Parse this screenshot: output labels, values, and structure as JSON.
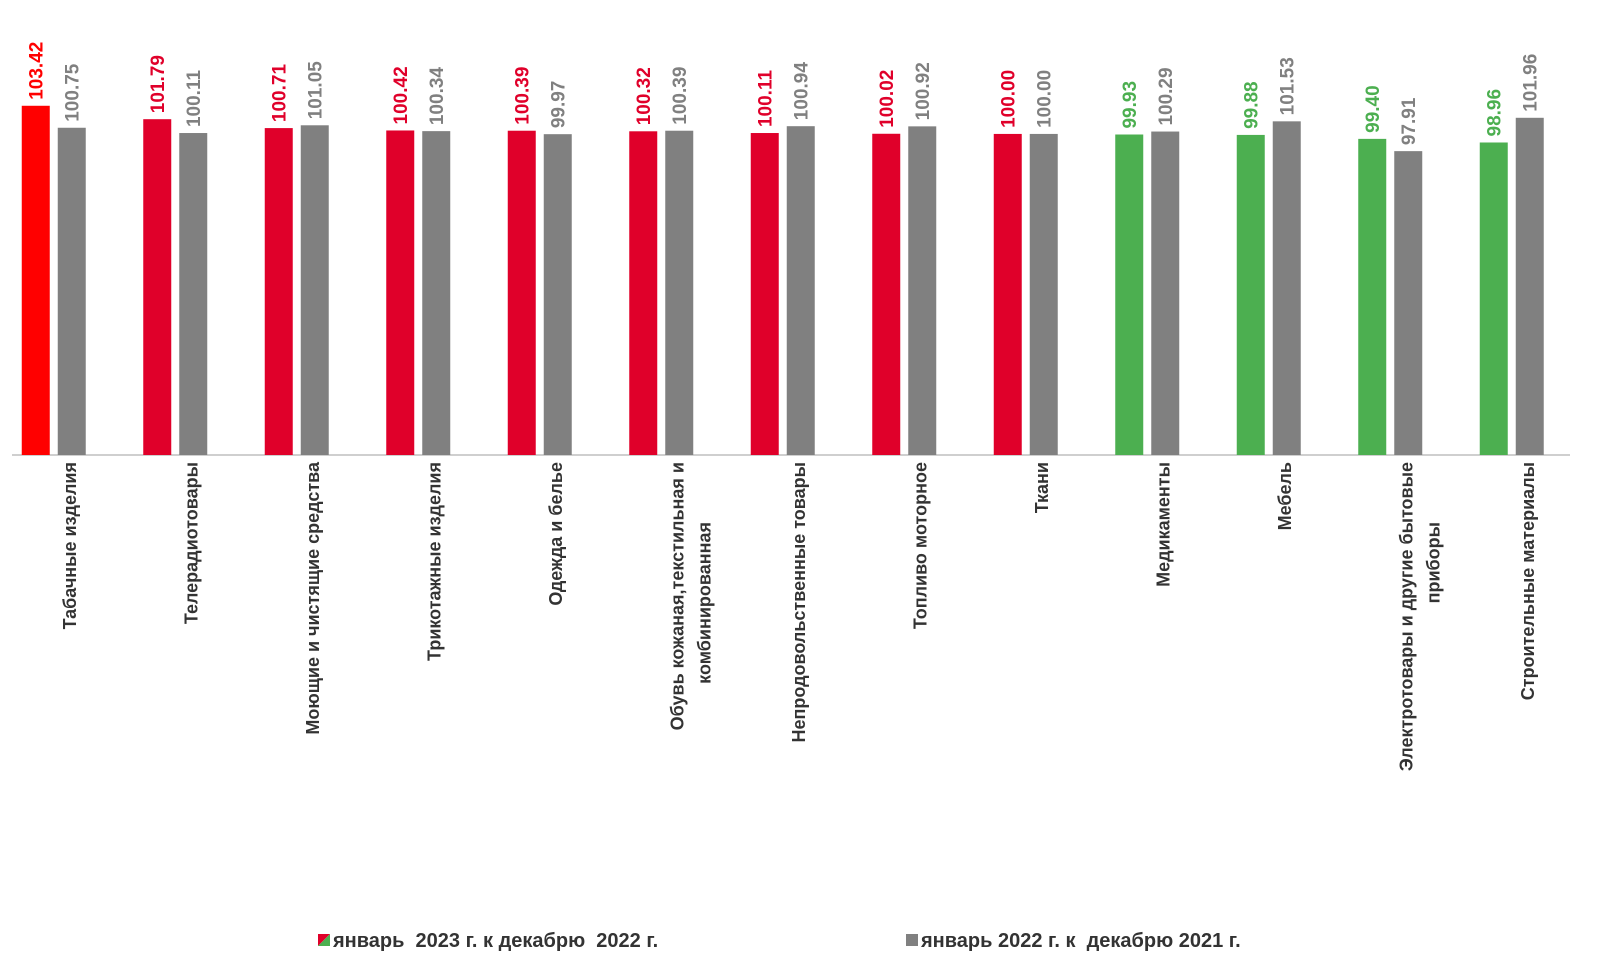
{
  "chart_data": {
    "type": "bar",
    "categories": [
      "Табачные изделия",
      "Телерадиотовары",
      "Моющие и чистящие средства",
      "Трикотажные изделия",
      "Одежда и белье",
      "Обувь кожаная,текстильная и комбинированная",
      "Непродовольственные товары",
      "Топливо моторное",
      "Ткани",
      "Медикаменты",
      "Мебель",
      "Электротовары и другие бытовые приборы",
      "Строительные материалы"
    ],
    "series": [
      {
        "name": "январь  2023 г. к декабрю  2022 г.",
        "colors": [
          "#ff0000",
          "#e0002a",
          "#e0002a",
          "#e0002a",
          "#e0002a",
          "#e0002a",
          "#e0002a",
          "#e0002a",
          "#e0002a",
          "#4caf50",
          "#4caf50",
          "#4caf50",
          "#4caf50"
        ],
        "values": [
          103.42,
          101.79,
          100.71,
          100.42,
          100.39,
          100.32,
          100.11,
          100.02,
          100,
          99.93,
          99.88,
          99.4,
          98.96
        ],
        "value_labels": [
          "103.42",
          "101.79",
          "100.71",
          "100.42",
          "100.39",
          "100.32",
          "100.11",
          "100.02",
          "100.00",
          "99.93",
          "99.88",
          "99.40",
          "98.96"
        ]
      },
      {
        "name": "январь 2022 г. к  декабрю 2021 г.",
        "color": "#808080",
        "values": [
          100.75,
          100.11,
          101.05,
          100.34,
          99.97,
          100.39,
          100.94,
          100.92,
          100,
          100.29,
          101.53,
          97.91,
          101.96
        ],
        "value_labels": [
          "100.75",
          "100.11",
          "101.05",
          "100.34",
          "99.97",
          "100.39",
          "100.94",
          "100.92",
          "100.00",
          "100.29",
          "101.53",
          "97.91",
          "101.96"
        ]
      }
    ],
    "ylim": [
      61,
      104
    ]
  }
}
